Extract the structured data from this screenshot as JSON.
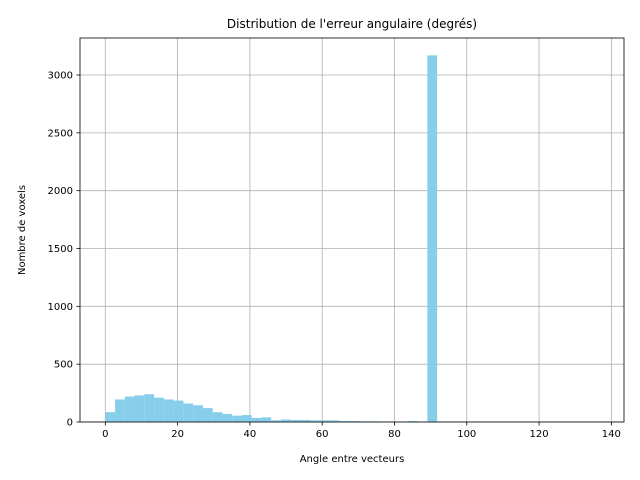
{
  "chart_data": {
    "type": "bar",
    "title": "Distribution de l'erreur angulaire (degrés)",
    "xlabel": "Angle entre vecteurs",
    "ylabel": "Nombre de voxels",
    "xlim": [
      -7,
      143.5
    ],
    "ylim": [
      0,
      3320
    ],
    "x_ticks": [
      0,
      20,
      40,
      60,
      80,
      100,
      120,
      140
    ],
    "y_ticks": [
      0,
      500,
      1000,
      1500,
      2000,
      2500,
      3000
    ],
    "grid": true,
    "bar_color": "#87ceeb",
    "bin_width": 2.7,
    "bins": [
      {
        "x": 0.0,
        "count": 85
      },
      {
        "x": 2.7,
        "count": 195
      },
      {
        "x": 5.4,
        "count": 220
      },
      {
        "x": 8.1,
        "count": 230
      },
      {
        "x": 10.8,
        "count": 240
      },
      {
        "x": 13.5,
        "count": 210
      },
      {
        "x": 16.2,
        "count": 195
      },
      {
        "x": 18.9,
        "count": 185
      },
      {
        "x": 21.6,
        "count": 160
      },
      {
        "x": 24.3,
        "count": 145
      },
      {
        "x": 27.0,
        "count": 120
      },
      {
        "x": 29.7,
        "count": 85
      },
      {
        "x": 32.4,
        "count": 70
      },
      {
        "x": 35.1,
        "count": 55
      },
      {
        "x": 37.8,
        "count": 60
      },
      {
        "x": 40.5,
        "count": 35
      },
      {
        "x": 43.2,
        "count": 40
      },
      {
        "x": 45.9,
        "count": 15
      },
      {
        "x": 48.6,
        "count": 22
      },
      {
        "x": 51.3,
        "count": 18
      },
      {
        "x": 54.0,
        "count": 18
      },
      {
        "x": 56.7,
        "count": 14
      },
      {
        "x": 59.4,
        "count": 15
      },
      {
        "x": 62.1,
        "count": 14
      },
      {
        "x": 64.8,
        "count": 8
      },
      {
        "x": 67.5,
        "count": 8
      },
      {
        "x": 70.2,
        "count": 6
      },
      {
        "x": 72.9,
        "count": 6
      },
      {
        "x": 75.6,
        "count": 4
      },
      {
        "x": 78.3,
        "count": 3
      },
      {
        "x": 81.0,
        "count": 2
      },
      {
        "x": 83.7,
        "count": 8
      },
      {
        "x": 86.4,
        "count": 2
      },
      {
        "x": 89.1,
        "count": 3170
      },
      {
        "x": 91.8,
        "count": 0
      },
      {
        "x": 94.5,
        "count": 2
      }
    ]
  }
}
